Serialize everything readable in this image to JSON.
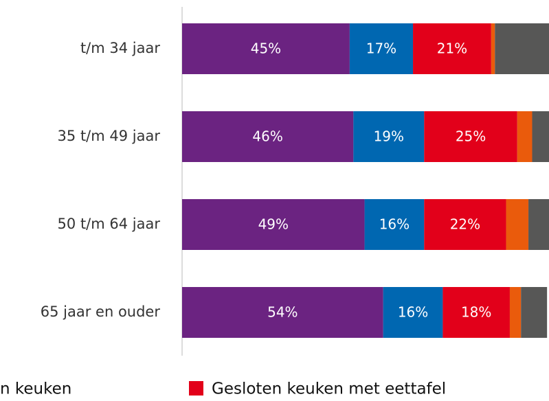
{
  "chart_data": {
    "type": "stacked-barh",
    "categories": [
      "t/m 34 jaar",
      "35 t/m 49 jaar",
      "50 t/m 64 jaar",
      "65 jaar en ouder"
    ],
    "xlim": [
      0,
      100
    ],
    "series": [
      {
        "color": "#6b2381",
        "values": [
          45,
          46,
          49,
          54
        ],
        "value_labels": [
          "45%",
          "46%",
          "49%",
          "54%"
        ]
      },
      {
        "name": "n keuken",
        "color": "#0067b1",
        "values": [
          17,
          19,
          16,
          16
        ],
        "value_labels": [
          "17%",
          "19%",
          "16%",
          "16%"
        ]
      },
      {
        "name": "Gesloten keuken met eettafel",
        "color": "#e2001a",
        "values": [
          21,
          25,
          22,
          18
        ],
        "value_labels": [
          "21%",
          "25%",
          "22%",
          "18%"
        ]
      },
      {
        "color": "#ea5b0c",
        "values": [
          1,
          4,
          6,
          3
        ],
        "value_labels": [
          null,
          null,
          null,
          null
        ]
      },
      {
        "color": "#575756",
        "values": [
          16,
          5,
          6,
          7
        ],
        "value_labels": [
          null,
          null,
          null,
          null
        ]
      }
    ]
  }
}
